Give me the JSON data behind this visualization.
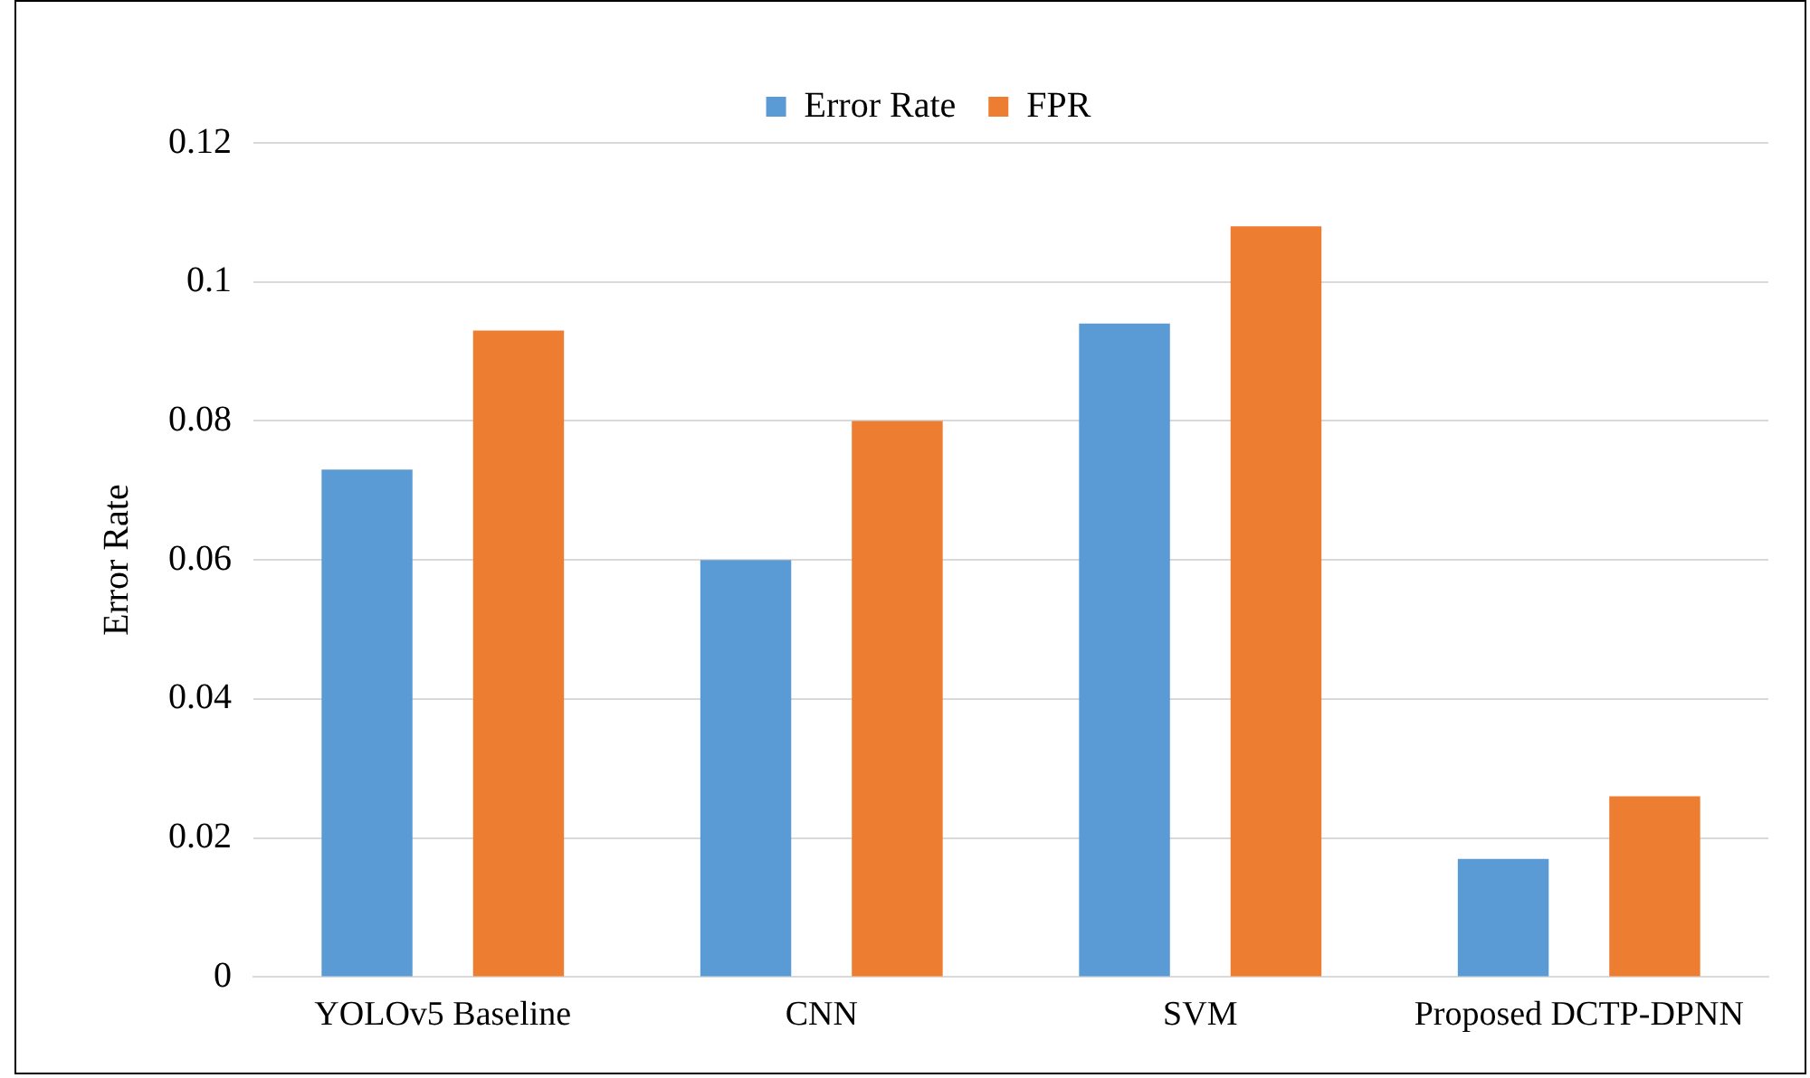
{
  "chart_data": {
    "type": "bar",
    "ylabel": "Error Rate",
    "categories": [
      "YOLOv5 Baseline",
      "CNN",
      "SVM",
      "Proposed DCTP-DPNN"
    ],
    "series": [
      {
        "name": "Error Rate",
        "color": "#5b9bd5",
        "values": [
          0.073,
          0.06,
          0.094,
          0.017
        ]
      },
      {
        "name": "FPR",
        "color": "#ed7d31",
        "values": [
          0.093,
          0.08,
          0.108,
          0.026
        ]
      }
    ],
    "ylim": [
      0,
      0.12
    ],
    "yticks": [
      0,
      0.02,
      0.04,
      0.06,
      0.08,
      0.1,
      0.12
    ],
    "grid": "y",
    "legend": "top"
  }
}
